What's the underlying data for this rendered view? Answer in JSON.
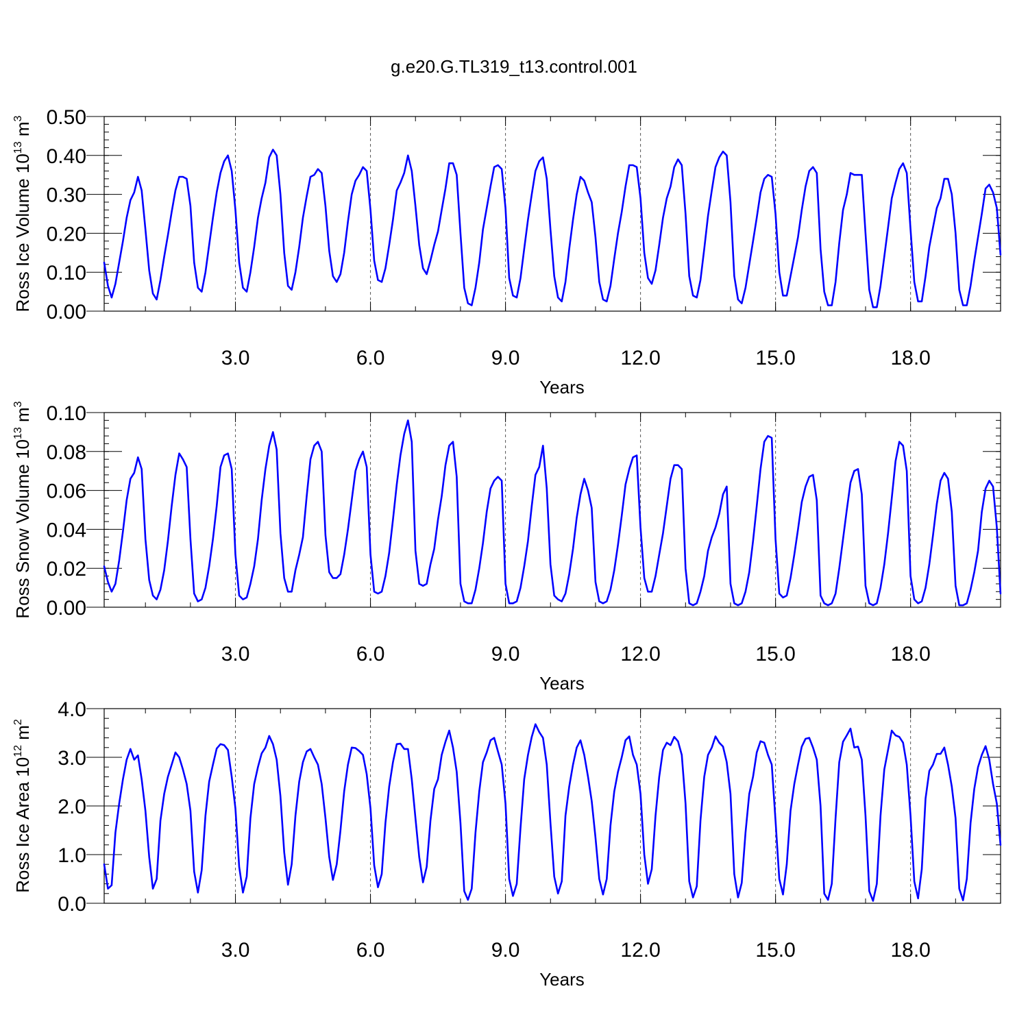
{
  "figure": {
    "title": "g.e20.G.TL319_t13.control.001",
    "line_color": "#0000ff",
    "grid_color": "#555555"
  },
  "chart_data": [
    {
      "type": "line",
      "title": "",
      "xlabel": "Years",
      "ylabel": "Ross Ice Volume",
      "ylabel_unit": "10",
      "ylabel_exp": "13",
      "ylabel_suffix": "m",
      "ylabel_suffix_exp": "3",
      "xlim": [
        0.08333,
        20.0
      ],
      "ylim": [
        0.0,
        0.5
      ],
      "xticks": [
        3.0,
        6.0,
        9.0,
        12.0,
        15.0,
        18.0
      ],
      "xtick_labels": [
        "3.0",
        "6.0",
        "9.0",
        "12.0",
        "15.0",
        "18.0"
      ],
      "yticks": [
        0.0,
        0.1,
        0.2,
        0.3,
        0.4,
        0.5
      ],
      "ytick_labels": [
        "0.00",
        "0.10",
        "0.20",
        "0.30",
        "0.40",
        "0.50"
      ],
      "y_minor_step": 0.02,
      "x_minor_step": 1.0,
      "grid": "vertical dashed at major x ticks",
      "x_start": 0.08333,
      "x_step": 0.08333,
      "values": [
        0.125,
        0.065,
        0.035,
        0.07,
        0.125,
        0.18,
        0.24,
        0.285,
        0.305,
        0.345,
        0.31,
        0.21,
        0.105,
        0.045,
        0.03,
        0.08,
        0.14,
        0.195,
        0.255,
        0.31,
        0.345,
        0.345,
        0.34,
        0.27,
        0.125,
        0.06,
        0.05,
        0.1,
        0.17,
        0.24,
        0.305,
        0.355,
        0.385,
        0.4,
        0.36,
        0.26,
        0.125,
        0.06,
        0.05,
        0.1,
        0.165,
        0.24,
        0.29,
        0.33,
        0.395,
        0.415,
        0.4,
        0.3,
        0.15,
        0.065,
        0.055,
        0.1,
        0.165,
        0.24,
        0.295,
        0.345,
        0.35,
        0.365,
        0.355,
        0.27,
        0.155,
        0.09,
        0.075,
        0.095,
        0.15,
        0.23,
        0.3,
        0.335,
        0.35,
        0.37,
        0.36,
        0.26,
        0.13,
        0.08,
        0.075,
        0.11,
        0.17,
        0.235,
        0.31,
        0.33,
        0.355,
        0.4,
        0.36,
        0.27,
        0.17,
        0.11,
        0.095,
        0.13,
        0.17,
        0.205,
        0.26,
        0.315,
        0.38,
        0.38,
        0.35,
        0.2,
        0.06,
        0.02,
        0.015,
        0.06,
        0.125,
        0.21,
        0.265,
        0.32,
        0.37,
        0.375,
        0.365,
        0.265,
        0.085,
        0.04,
        0.035,
        0.085,
        0.16,
        0.235,
        0.3,
        0.36,
        0.385,
        0.395,
        0.34,
        0.21,
        0.09,
        0.035,
        0.025,
        0.075,
        0.16,
        0.235,
        0.3,
        0.345,
        0.335,
        0.305,
        0.28,
        0.19,
        0.075,
        0.03,
        0.025,
        0.065,
        0.135,
        0.2,
        0.255,
        0.32,
        0.375,
        0.375,
        0.37,
        0.29,
        0.15,
        0.085,
        0.07,
        0.105,
        0.17,
        0.24,
        0.29,
        0.32,
        0.37,
        0.39,
        0.375,
        0.25,
        0.09,
        0.04,
        0.035,
        0.08,
        0.16,
        0.245,
        0.31,
        0.37,
        0.395,
        0.41,
        0.4,
        0.28,
        0.09,
        0.03,
        0.02,
        0.06,
        0.12,
        0.18,
        0.24,
        0.305,
        0.34,
        0.35,
        0.345,
        0.25,
        0.1,
        0.04,
        0.04,
        0.09,
        0.14,
        0.19,
        0.26,
        0.32,
        0.36,
        0.37,
        0.355,
        0.16,
        0.05,
        0.015,
        0.015,
        0.075,
        0.175,
        0.26,
        0.3,
        0.355,
        0.35,
        0.35,
        0.35,
        0.2,
        0.055,
        0.01,
        0.01,
        0.065,
        0.14,
        0.215,
        0.29,
        0.33,
        0.365,
        0.38,
        0.355,
        0.21,
        0.075,
        0.025,
        0.025,
        0.09,
        0.165,
        0.215,
        0.265,
        0.29,
        0.34,
        0.34,
        0.3,
        0.2,
        0.055,
        0.015,
        0.015,
        0.065,
        0.13,
        0.19,
        0.25,
        0.315,
        0.325,
        0.305,
        0.265,
        0.145
      ]
    },
    {
      "type": "line",
      "title": "",
      "xlabel": "Years",
      "ylabel": "Ross Snow Volume",
      "ylabel_unit": "10",
      "ylabel_exp": "13",
      "ylabel_suffix": "m",
      "ylabel_suffix_exp": "3",
      "xlim": [
        0.08333,
        20.0
      ],
      "ylim": [
        0.0,
        0.1
      ],
      "xticks": [
        3.0,
        6.0,
        9.0,
        12.0,
        15.0,
        18.0
      ],
      "xtick_labels": [
        "3.0",
        "6.0",
        "9.0",
        "12.0",
        "15.0",
        "18.0"
      ],
      "yticks": [
        0.0,
        0.02,
        0.04,
        0.06,
        0.08,
        0.1
      ],
      "ytick_labels": [
        "0.00",
        "0.02",
        "0.04",
        "0.06",
        "0.08",
        "0.10"
      ],
      "y_minor_step": 0.004,
      "x_minor_step": 1.0,
      "grid": "vertical dashed at major x ticks",
      "x_start": 0.08333,
      "x_step": 0.08333,
      "values": [
        0.021,
        0.013,
        0.008,
        0.012,
        0.024,
        0.039,
        0.055,
        0.066,
        0.069,
        0.077,
        0.071,
        0.035,
        0.014,
        0.006,
        0.004,
        0.009,
        0.019,
        0.034,
        0.052,
        0.068,
        0.079,
        0.076,
        0.072,
        0.035,
        0.007,
        0.003,
        0.004,
        0.01,
        0.021,
        0.035,
        0.052,
        0.072,
        0.078,
        0.079,
        0.071,
        0.027,
        0.006,
        0.004,
        0.005,
        0.012,
        0.021,
        0.035,
        0.055,
        0.071,
        0.083,
        0.09,
        0.081,
        0.038,
        0.015,
        0.008,
        0.008,
        0.019,
        0.027,
        0.036,
        0.057,
        0.076,
        0.083,
        0.085,
        0.08,
        0.037,
        0.018,
        0.015,
        0.015,
        0.017,
        0.027,
        0.04,
        0.055,
        0.07,
        0.076,
        0.08,
        0.072,
        0.027,
        0.008,
        0.007,
        0.008,
        0.016,
        0.028,
        0.045,
        0.063,
        0.078,
        0.089,
        0.096,
        0.085,
        0.029,
        0.012,
        0.011,
        0.012,
        0.022,
        0.03,
        0.045,
        0.057,
        0.073,
        0.083,
        0.085,
        0.067,
        0.012,
        0.003,
        0.002,
        0.002,
        0.009,
        0.02,
        0.033,
        0.049,
        0.061,
        0.065,
        0.067,
        0.065,
        0.012,
        0.002,
        0.002,
        0.003,
        0.01,
        0.021,
        0.034,
        0.052,
        0.068,
        0.072,
        0.083,
        0.061,
        0.022,
        0.006,
        0.004,
        0.003,
        0.007,
        0.017,
        0.03,
        0.046,
        0.058,
        0.066,
        0.06,
        0.051,
        0.013,
        0.003,
        0.002,
        0.003,
        0.009,
        0.019,
        0.032,
        0.047,
        0.063,
        0.071,
        0.077,
        0.078,
        0.041,
        0.015,
        0.008,
        0.008,
        0.016,
        0.027,
        0.038,
        0.052,
        0.066,
        0.073,
        0.073,
        0.071,
        0.02,
        0.002,
        0.001,
        0.002,
        0.008,
        0.016,
        0.029,
        0.036,
        0.041,
        0.048,
        0.058,
        0.062,
        0.012,
        0.002,
        0.001,
        0.002,
        0.008,
        0.018,
        0.034,
        0.052,
        0.071,
        0.085,
        0.088,
        0.087,
        0.035,
        0.007,
        0.005,
        0.006,
        0.015,
        0.027,
        0.04,
        0.054,
        0.062,
        0.067,
        0.068,
        0.055,
        0.006,
        0.002,
        0.001,
        0.002,
        0.007,
        0.02,
        0.035,
        0.05,
        0.064,
        0.07,
        0.071,
        0.058,
        0.011,
        0.002,
        0.001,
        0.002,
        0.01,
        0.022,
        0.038,
        0.056,
        0.075,
        0.085,
        0.083,
        0.07,
        0.016,
        0.004,
        0.002,
        0.003,
        0.01,
        0.022,
        0.037,
        0.053,
        0.065,
        0.069,
        0.066,
        0.049,
        0.011,
        0.001,
        0.001,
        0.002,
        0.009,
        0.018,
        0.029,
        0.049,
        0.061,
        0.065,
        0.062,
        0.041,
        0.007
      ]
    },
    {
      "type": "line",
      "title": "",
      "xlabel": "Years",
      "ylabel": "Ross Ice Area",
      "ylabel_unit": "10",
      "ylabel_exp": "12",
      "ylabel_suffix": "m",
      "ylabel_suffix_exp": "2",
      "xlim": [
        0.08333,
        20.0
      ],
      "ylim": [
        0.0,
        4.0
      ],
      "xticks": [
        3.0,
        6.0,
        9.0,
        12.0,
        15.0,
        18.0
      ],
      "xtick_labels": [
        "3.0",
        "6.0",
        "9.0",
        "12.0",
        "15.0",
        "18.0"
      ],
      "yticks": [
        0.0,
        1.0,
        2.0,
        3.0,
        4.0
      ],
      "ytick_labels": [
        "0.0",
        "1.0",
        "2.0",
        "3.0",
        "4.0"
      ],
      "y_minor_step": 0.2,
      "x_minor_step": 1.0,
      "grid": "vertical dashed at major x ticks",
      "x_start": 0.08333,
      "x_step": 0.08333,
      "values": [
        0.8,
        0.3,
        0.37,
        1.45,
        2.05,
        2.55,
        2.95,
        3.17,
        2.95,
        3.04,
        2.55,
        1.9,
        0.95,
        0.3,
        0.5,
        1.7,
        2.25,
        2.6,
        2.85,
        3.1,
        3.0,
        2.75,
        2.45,
        1.9,
        0.65,
        0.22,
        0.68,
        1.8,
        2.5,
        2.85,
        3.18,
        3.27,
        3.25,
        3.15,
        2.6,
        1.95,
        0.75,
        0.22,
        0.55,
        1.75,
        2.45,
        2.8,
        3.08,
        3.2,
        3.44,
        3.27,
        2.95,
        2.2,
        1.05,
        0.38,
        0.8,
        1.8,
        2.5,
        2.9,
        3.12,
        3.17,
        3.0,
        2.85,
        2.45,
        1.75,
        0.95,
        0.48,
        0.8,
        1.5,
        2.3,
        2.85,
        3.2,
        3.19,
        3.13,
        3.05,
        2.65,
        1.95,
        0.78,
        0.33,
        0.6,
        1.65,
        2.4,
        2.9,
        3.27,
        3.28,
        3.17,
        3.17,
        2.55,
        1.75,
        0.95,
        0.43,
        0.75,
        1.7,
        2.35,
        2.55,
        3.05,
        3.32,
        3.55,
        3.2,
        2.7,
        1.65,
        0.25,
        0.07,
        0.3,
        1.45,
        2.3,
        2.9,
        3.1,
        3.35,
        3.4,
        3.12,
        2.85,
        2.05,
        0.5,
        0.15,
        0.4,
        1.55,
        2.55,
        3.05,
        3.42,
        3.68,
        3.52,
        3.4,
        2.85,
        1.65,
        0.55,
        0.2,
        0.45,
        1.8,
        2.4,
        2.85,
        3.2,
        3.35,
        3.05,
        2.6,
        2.1,
        1.35,
        0.5,
        0.18,
        0.5,
        1.6,
        2.3,
        2.7,
        3.0,
        3.35,
        3.43,
        3.05,
        2.85,
        2.25,
        1.0,
        0.4,
        0.7,
        1.8,
        2.6,
        3.15,
        3.3,
        3.25,
        3.42,
        3.33,
        3.05,
        2.05,
        0.45,
        0.12,
        0.35,
        1.7,
        2.6,
        3.05,
        3.2,
        3.43,
        3.3,
        3.22,
        2.9,
        2.25,
        0.6,
        0.12,
        0.42,
        1.45,
        2.25,
        2.6,
        3.1,
        3.33,
        3.3,
        3.05,
        2.85,
        1.7,
        0.5,
        0.18,
        0.8,
        1.9,
        2.45,
        2.85,
        3.22,
        3.38,
        3.4,
        3.2,
        2.95,
        2.0,
        0.2,
        0.07,
        0.4,
        1.75,
        2.9,
        3.32,
        3.45,
        3.59,
        3.2,
        3.22,
        2.95,
        1.8,
        0.25,
        0.05,
        0.4,
        1.8,
        2.75,
        3.15,
        3.55,
        3.45,
        3.42,
        3.3,
        2.85,
        1.8,
        0.45,
        0.1,
        0.7,
        2.15,
        2.72,
        2.85,
        3.07,
        3.07,
        3.2,
        2.85,
        2.4,
        1.75,
        0.3,
        0.06,
        0.5,
        1.65,
        2.35,
        2.8,
        3.05,
        3.23,
        2.95,
        2.45,
        2.05,
        1.2
      ]
    }
  ]
}
